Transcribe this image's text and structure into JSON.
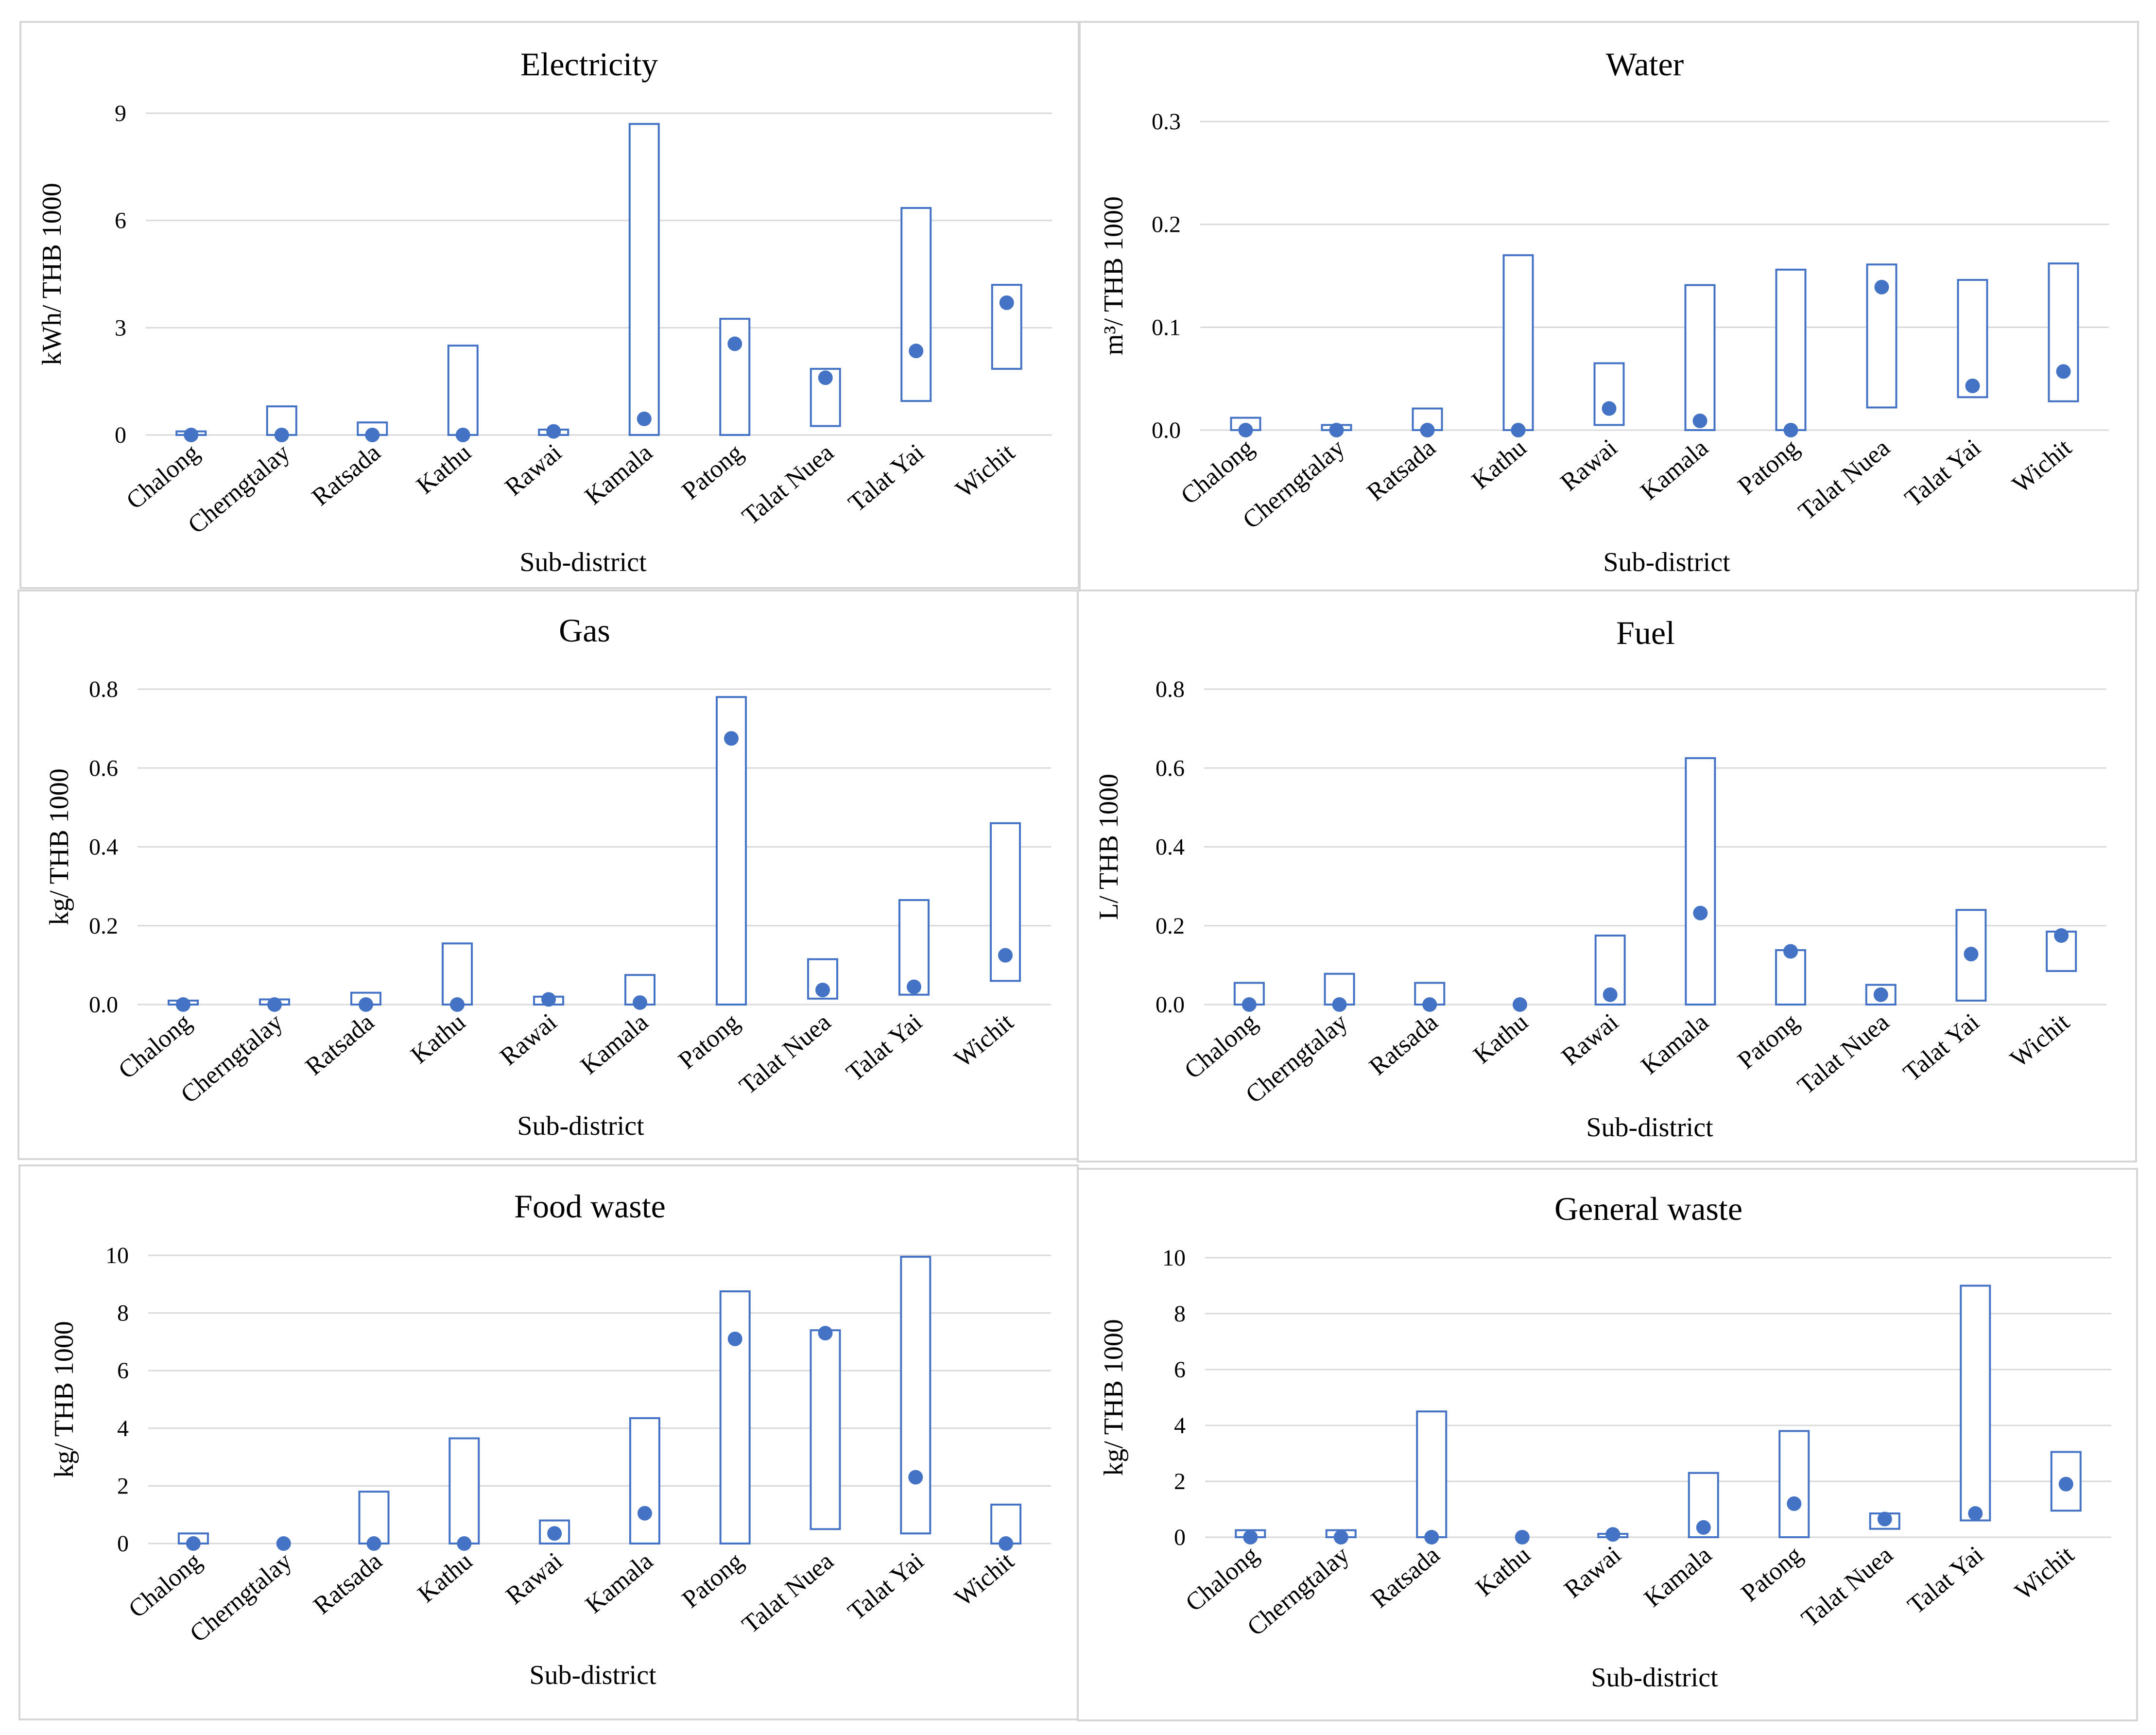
{
  "chart_data": [
    {
      "type": "range-dot",
      "title": "Electricity",
      "xlabel": "Sub-district",
      "ylabel": "kWh/ THB 1000",
      "ylim": [
        0,
        9
      ],
      "yticks": [
        "0",
        "3",
        "6",
        "9"
      ],
      "grid": true,
      "categories": [
        "Chalong",
        "Cherngtalay",
        "Ratsada",
        "Kathu",
        "Rawai",
        "Kamala",
        "Patong",
        "Talat Nuea",
        "Talat Yai",
        "Wichit"
      ],
      "series": [
        {
          "name": "",
          "kind": "range",
          "low": [
            0,
            0,
            0,
            0,
            0,
            0,
            0,
            0.25,
            0.95,
            1.85
          ],
          "high": [
            0.1,
            0.8,
            0.35,
            2.5,
            0.15,
            8.7,
            3.25,
            1.85,
            6.35,
            4.2
          ]
        },
        {
          "name": "",
          "kind": "point",
          "values": [
            0,
            0,
            0,
            0,
            0.1,
            0.45,
            2.55,
            1.6,
            2.35,
            3.7
          ]
        }
      ]
    },
    {
      "type": "range-dot",
      "title": "Water",
      "xlabel": "Sub-district",
      "ylabel": "m³/ THB 1000",
      "ylim": [
        0,
        0.3
      ],
      "yticks": [
        "0.0",
        "0.1",
        "0.2",
        "0.3"
      ],
      "grid": true,
      "categories": [
        "Chalong",
        "Cherngtalay",
        "Ratsada",
        "Kathu",
        "Rawai",
        "Kamala",
        "Patong",
        "Talat Nuea",
        "Talat Yai",
        "Wichit"
      ],
      "series": [
        {
          "name": "",
          "kind": "range",
          "low": [
            0,
            0,
            0,
            0,
            0.005,
            0,
            0,
            0.022,
            0.032,
            0.028
          ],
          "high": [
            0.012,
            0.005,
            0.021,
            0.17,
            0.065,
            0.141,
            0.156,
            0.161,
            0.146,
            0.162
          ]
        },
        {
          "name": "",
          "kind": "point",
          "values": [
            0,
            0,
            0,
            0,
            0.021,
            0.009,
            0,
            0.139,
            0.043,
            0.057
          ]
        }
      ]
    },
    {
      "type": "range-dot",
      "title": "Gas",
      "xlabel": "Sub-district",
      "ylabel": "kg/ THB 1000",
      "ylim": [
        0,
        0.8
      ],
      "yticks": [
        "0.0",
        "0.2",
        "0.4",
        "0.6",
        "0.8"
      ],
      "grid": true,
      "categories": [
        "Chalong",
        "Cherngtalay",
        "Ratsada",
        "Kathu",
        "Rawai",
        "Kamala",
        "Patong",
        "Talat Nuea",
        "Talat Yai",
        "Wichit"
      ],
      "series": [
        {
          "name": "",
          "kind": "range",
          "low": [
            0,
            0,
            0,
            0,
            0,
            0,
            0,
            0.015,
            0.025,
            0.06
          ],
          "high": [
            0.01,
            0.013,
            0.03,
            0.155,
            0.02,
            0.075,
            0.78,
            0.115,
            0.265,
            0.46
          ]
        },
        {
          "name": "",
          "kind": "point",
          "values": [
            0,
            0,
            0,
            0,
            0.013,
            0.005,
            0.675,
            0.037,
            0.045,
            0.125
          ]
        }
      ]
    },
    {
      "type": "range-dot",
      "title": "Fuel",
      "xlabel": "Sub-district",
      "ylabel": "L/ THB 1000",
      "ylim": [
        0,
        0.8
      ],
      "yticks": [
        "0.0",
        "0.2",
        "0.4",
        "0.6",
        "0.8"
      ],
      "grid": true,
      "categories": [
        "Chalong",
        "Cherngtalay",
        "Ratsada",
        "Kathu",
        "Rawai",
        "Kamala",
        "Patong",
        "Talat Nuea",
        "Talat Yai",
        "Wichit"
      ],
      "series": [
        {
          "name": "",
          "kind": "range",
          "low": [
            0,
            0,
            0,
            0,
            0,
            0,
            0,
            0,
            0.01,
            0.085
          ],
          "high": [
            0.055,
            0.078,
            0.055,
            0,
            0.175,
            0.625,
            0.138,
            0.05,
            0.24,
            0.185
          ]
        },
        {
          "name": "",
          "kind": "point",
          "values": [
            0,
            0,
            0,
            0,
            0.025,
            0.232,
            0.135,
            0.025,
            0.128,
            0.175
          ]
        }
      ]
    },
    {
      "type": "range-dot",
      "title": "Food waste",
      "xlabel": "Sub-district",
      "ylabel": "kg/ THB 1000",
      "ylim": [
        0,
        10
      ],
      "yticks": [
        "0",
        "2",
        "4",
        "6",
        "8",
        "10"
      ],
      "grid": true,
      "categories": [
        "Chalong",
        "Cherngtalay",
        "Ratsada",
        "Kathu",
        "Rawai",
        "Kamala",
        "Patong",
        "Talat Nuea",
        "Talat Yai",
        "Wichit"
      ],
      "series": [
        {
          "name": "",
          "kind": "range",
          "low": [
            0,
            0,
            0,
            0,
            0,
            0,
            0,
            0.5,
            0.35,
            0
          ],
          "high": [
            0.35,
            0,
            1.8,
            3.65,
            0.8,
            4.35,
            8.75,
            7.4,
            9.95,
            1.35
          ]
        },
        {
          "name": "",
          "kind": "point",
          "values": [
            0,
            0,
            0,
            0,
            0.35,
            1.05,
            7.1,
            7.3,
            2.3,
            0
          ]
        }
      ]
    },
    {
      "type": "range-dot",
      "title": "General waste",
      "xlabel": "Sub-district",
      "ylabel": "kg/ THB 1000",
      "ylim": [
        0,
        10
      ],
      "yticks": [
        "0",
        "2",
        "4",
        "6",
        "8",
        "10"
      ],
      "grid": true,
      "categories": [
        "Chalong",
        "Cherngtalay",
        "Ratsada",
        "Kathu",
        "Rawai",
        "Kamala",
        "Patong",
        "Talat Nuea",
        "Talat Yai",
        "Wichit"
      ],
      "series": [
        {
          "name": "",
          "kind": "range",
          "low": [
            0,
            0,
            0,
            0,
            0,
            0,
            0,
            0.3,
            0.6,
            0.95
          ],
          "high": [
            0.25,
            0.25,
            4.5,
            0,
            0.12,
            2.3,
            3.8,
            0.85,
            9,
            3.05
          ]
        },
        {
          "name": "",
          "kind": "point",
          "values": [
            0,
            0,
            0,
            0,
            0.1,
            0.35,
            1.2,
            0.65,
            0.85,
            1.9
          ]
        }
      ]
    }
  ],
  "colors": {
    "series": "#4472c4",
    "grid": "#d9d9d9",
    "frame": "#d6d6d6",
    "text": "#000000"
  }
}
